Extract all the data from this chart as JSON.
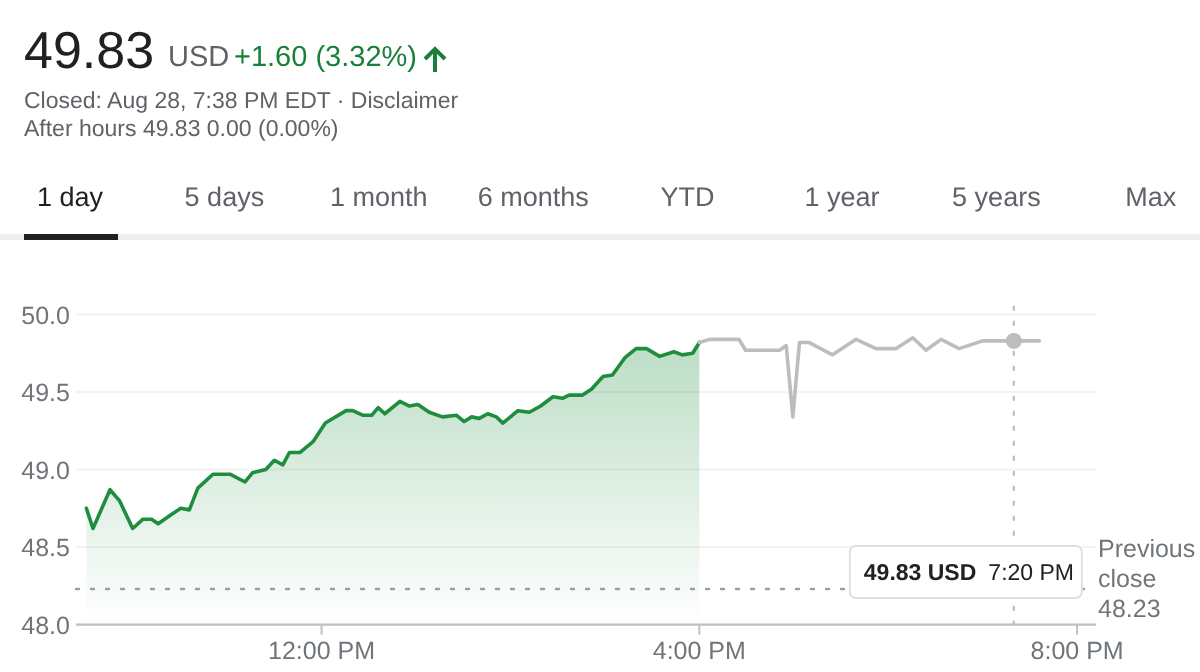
{
  "chart_data": {
    "type": "line",
    "title": "49.83",
    "annotations": [
      "USD",
      "+1.60 (3.32%)",
      "Closed: Aug 28, 7:38 PM EDT · Disclaimer",
      "After hours 49.83 0.00 (0.00%)",
      "1 day",
      "5 days",
      "1 month",
      "6 months",
      "YTD",
      "1 year",
      "5 years",
      "Max",
      "49.83 USD 7:20 PM"
    ],
    "xlim": [
      9.4,
      20.2
    ],
    "xticks": [
      {
        "value": 12,
        "label": "12:00 PM"
      },
      {
        "value": 16,
        "label": "4:00 PM"
      },
      {
        "value": 20,
        "label": "8:00 PM"
      }
    ],
    "ylim": [
      48,
      50.05
    ],
    "yticks": [
      {
        "value": 48,
        "label": "48.0"
      },
      48.5,
      {
        "value": 49,
        "label": "49.0"
      },
      49.5,
      {
        "value": 50,
        "label": "50.0"
      }
    ],
    "grid": "y",
    "ref_lines": [
      {
        "axis": "y",
        "value": 48.23,
        "label": "Previous close 48.23",
        "color": "#9aa0a6",
        "line_style": "dotted"
      },
      {
        "axis": "x",
        "value": 19.33,
        "color": "#bdc1c6",
        "line_style": "dotted"
      }
    ],
    "series": [
      {
        "type": "area",
        "color": "#1e8e3e",
        "x": [
          9.51,
          9.58,
          9.76,
          9.86,
          10.0,
          10.11,
          10.2,
          10.27,
          10.41,
          10.51,
          10.6,
          10.69,
          10.85,
          11.03,
          11.19,
          11.27,
          11.41,
          11.5,
          11.59,
          11.66,
          11.77,
          11.91,
          12.04,
          12.12,
          12.26,
          12.33,
          12.44,
          12.53,
          12.6,
          12.67,
          12.83,
          12.93,
          13.02,
          13.14,
          13.28,
          13.43,
          13.51,
          13.59,
          13.67,
          13.76,
          13.85,
          13.92,
          14.08,
          14.2,
          14.32,
          14.45,
          14.55,
          14.62,
          14.76,
          14.86,
          14.98,
          15.08,
          15.21,
          15.33,
          15.44,
          15.58,
          15.73,
          15.82,
          15.93,
          16.0
        ],
        "values": [
          48.75,
          48.62,
          48.87,
          48.8,
          48.62,
          48.68,
          48.68,
          48.65,
          48.71,
          48.75,
          48.74,
          48.88,
          48.97,
          48.97,
          48.92,
          48.98,
          49.0,
          49.06,
          49.03,
          49.11,
          49.11,
          49.18,
          49.3,
          49.33,
          49.38,
          49.38,
          49.35,
          49.35,
          49.4,
          49.36,
          49.44,
          49.41,
          49.42,
          49.37,
          49.34,
          49.35,
          49.31,
          49.34,
          49.33,
          49.36,
          49.34,
          49.3,
          49.38,
          49.37,
          49.41,
          49.47,
          49.46,
          49.48,
          49.48,
          49.52,
          49.6,
          49.61,
          49.72,
          49.78,
          49.78,
          49.73,
          49.76,
          49.74,
          49.75,
          49.82
        ]
      },
      {
        "color": "#bdbdbd",
        "x": [
          16.0,
          16.11,
          16.42,
          16.49,
          16.85,
          16.92,
          16.99,
          17.06,
          17.16,
          17.41,
          17.66,
          17.87,
          18.08,
          18.26,
          18.4,
          18.56,
          18.75,
          19.0,
          19.33,
          19.6
        ],
        "values": [
          49.82,
          49.84,
          49.84,
          49.77,
          49.77,
          49.8,
          49.34,
          49.82,
          49.82,
          49.74,
          49.84,
          49.78,
          49.78,
          49.85,
          49.77,
          49.84,
          49.78,
          49.83,
          49.83,
          49.83
        ]
      }
    ]
  }
}
